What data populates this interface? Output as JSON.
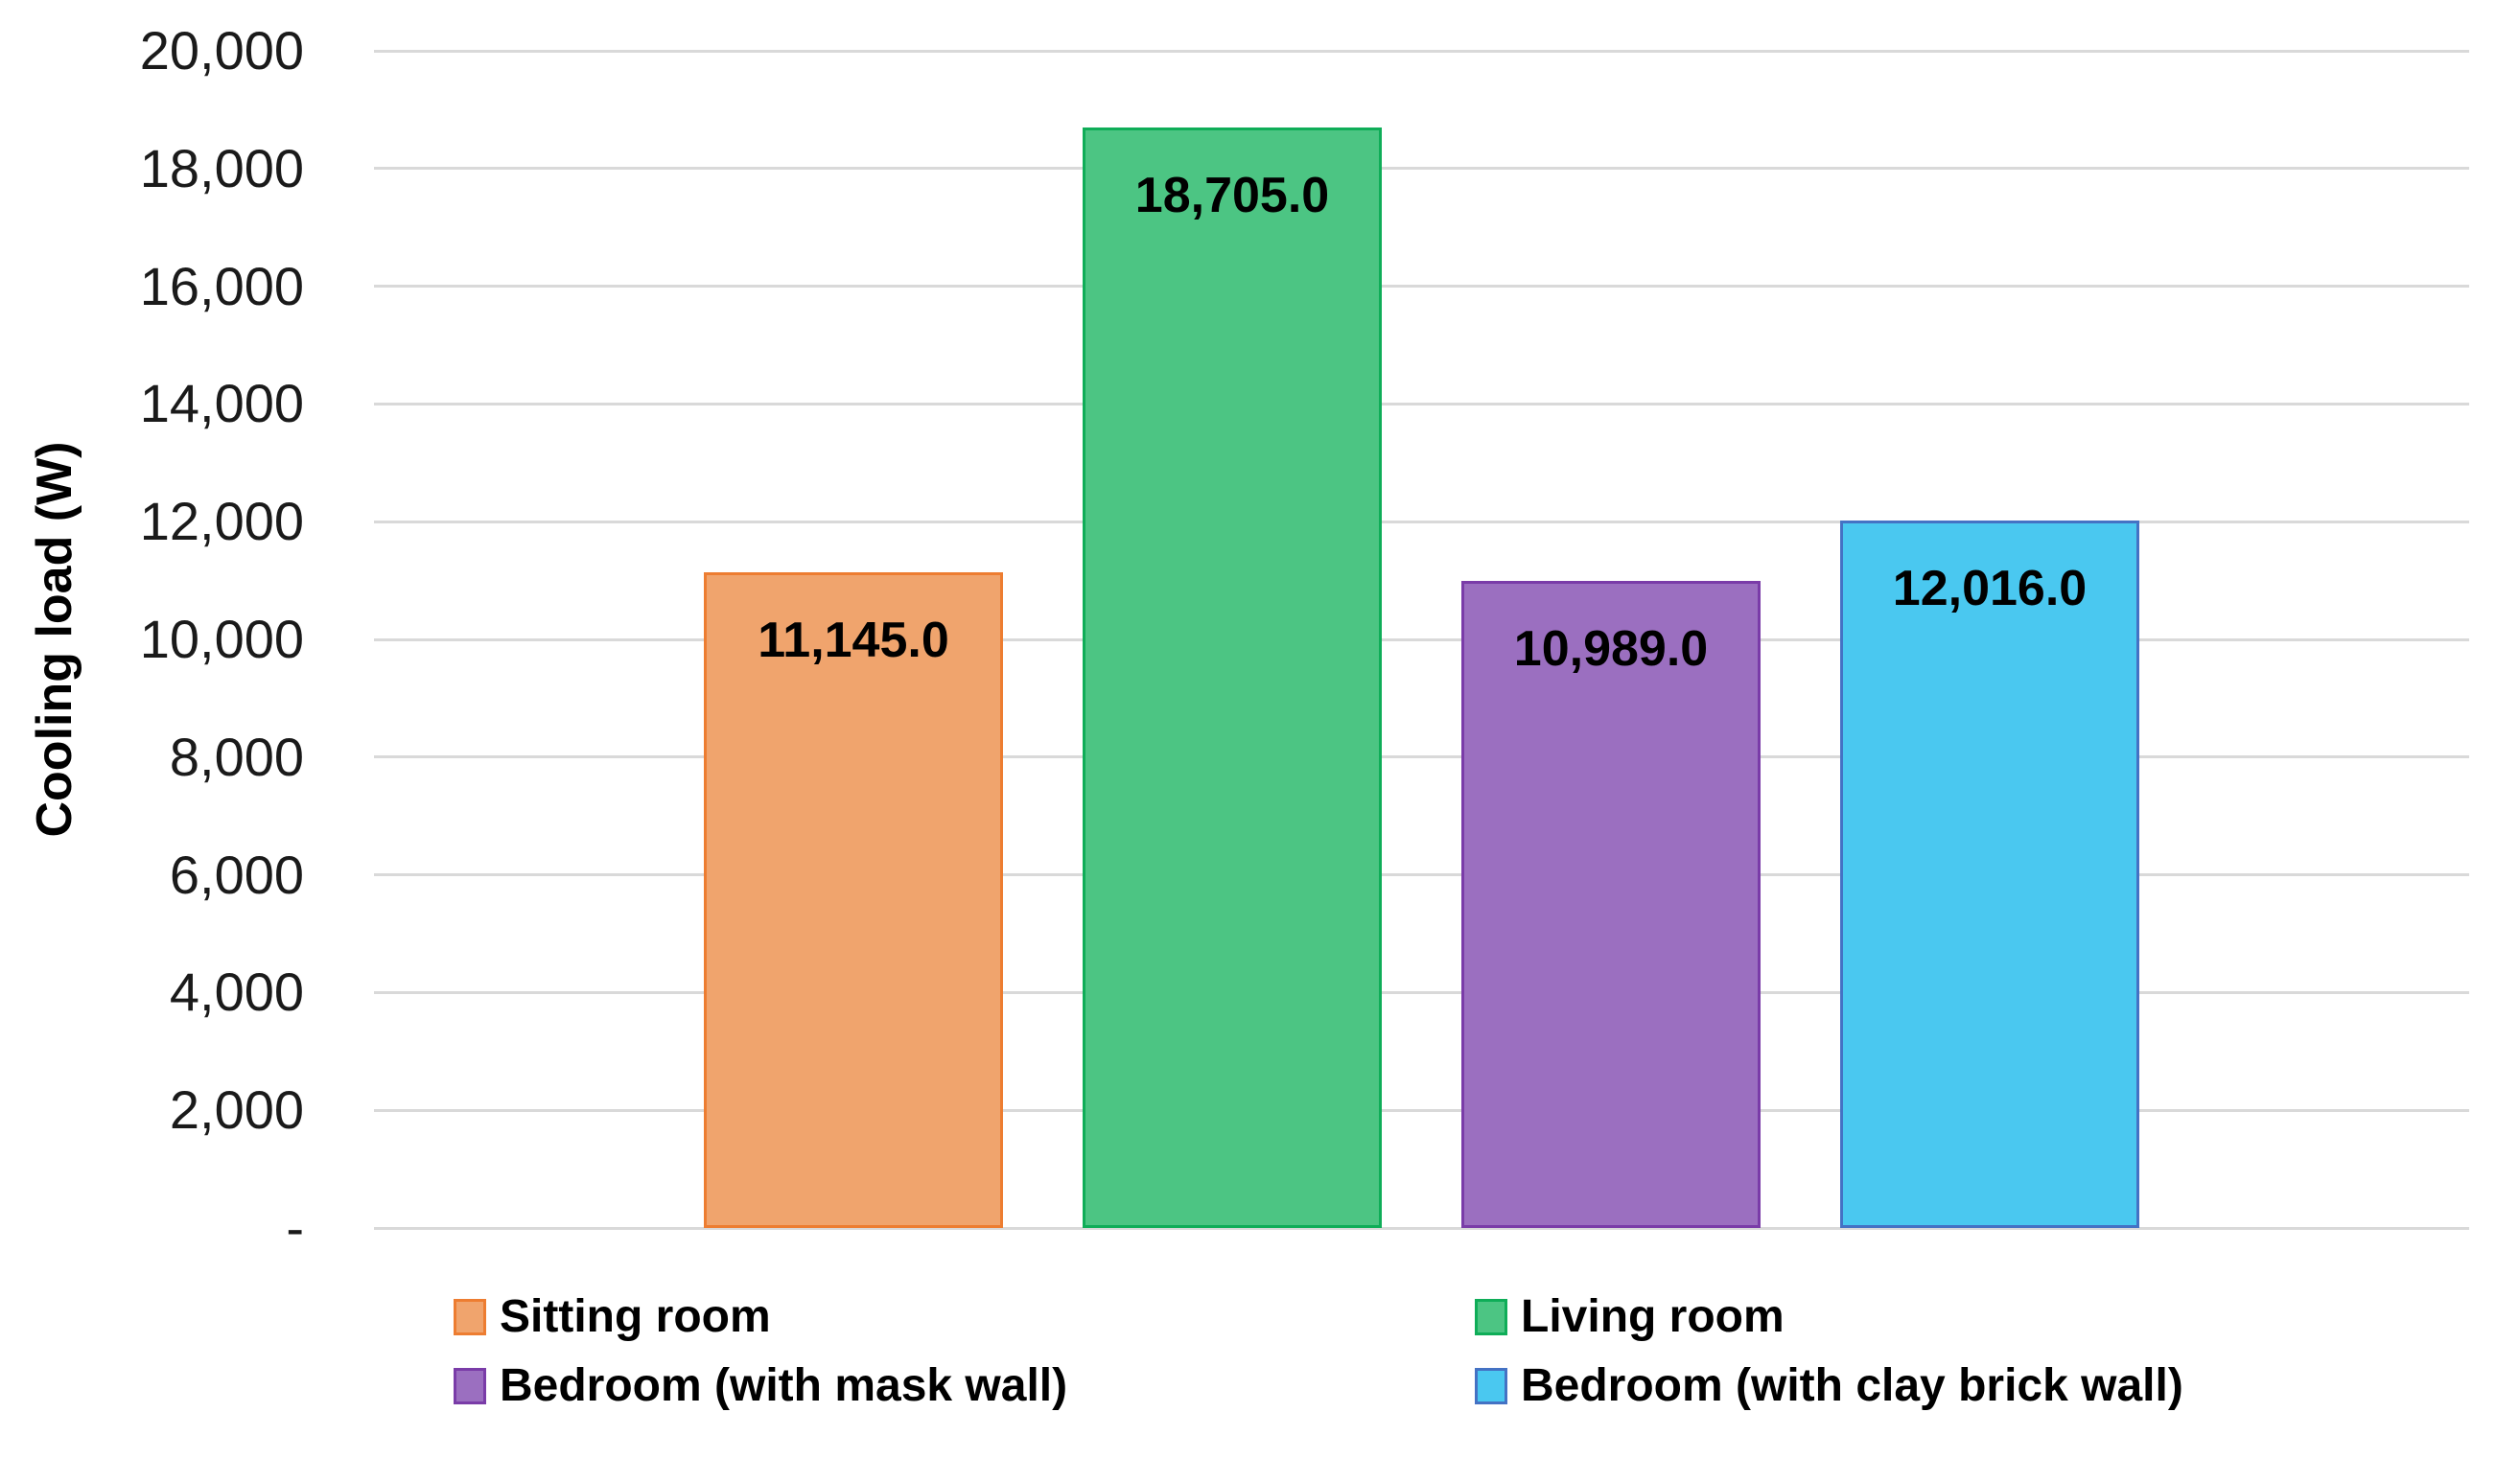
{
  "chart_data": {
    "type": "bar",
    "title": "",
    "xlabel": "",
    "ylabel": "Cooling load (W)",
    "ylim": [
      0,
      20000
    ],
    "ytick_step": 2000,
    "grid": true,
    "gridline_color": "#d9d9d9",
    "legend_position": "bottom",
    "legend_columns": 2,
    "yticks": [
      {
        "value": 0,
        "label": "-"
      },
      {
        "value": 2000,
        "label": "2,000"
      },
      {
        "value": 4000,
        "label": "4,000"
      },
      {
        "value": 6000,
        "label": "6,000"
      },
      {
        "value": 8000,
        "label": "8,000"
      },
      {
        "value": 10000,
        "label": "10,000"
      },
      {
        "value": 12000,
        "label": "12,000"
      },
      {
        "value": 14000,
        "label": "14,000"
      },
      {
        "value": 16000,
        "label": "16,000"
      },
      {
        "value": 18000,
        "label": "18,000"
      },
      {
        "value": 20000,
        "label": "20,000"
      }
    ],
    "series": [
      {
        "name": "Sitting room",
        "value": 11145,
        "label": "11,145.0",
        "fill": "#F0A46D",
        "border": "#ED7D31"
      },
      {
        "name": "Living room",
        "value": 18705,
        "label": "18,705.0",
        "fill": "#4CC583",
        "border": "#0FAD58"
      },
      {
        "name": "Bedroom (with mask wall)",
        "value": 10989,
        "label": "10,989.0",
        "fill": "#9B6FC0",
        "border": "#7A3CA8"
      },
      {
        "name": "Bedroom (with clay brick wall)",
        "value": 12016,
        "label": "12,016.0",
        "fill": "#4AC8F0",
        "border": "#4472C4"
      }
    ]
  }
}
